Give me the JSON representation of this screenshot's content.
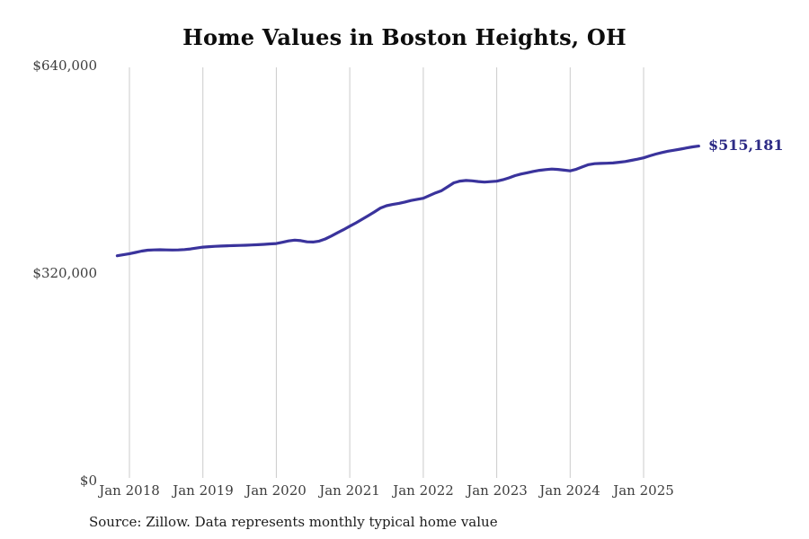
{
  "chart_data": {
    "type": "line",
    "title": "Home Values in Boston Heights, OH",
    "source_note": "Source: Zillow. Data represents monthly typical home value",
    "end_label": "$515,181",
    "end_value": 515181,
    "series_name": "Monthly typical home value",
    "x_start_month": "Nov 2017",
    "x_end_month": "Oct 2025",
    "x_tick_labels": [
      "Jan 2018",
      "Jan 2019",
      "Jan 2020",
      "Jan 2021",
      "Jan 2022",
      "Jan 2023",
      "Jan 2024",
      "Jan 2025"
    ],
    "x_tick_month_indices": [
      2,
      14,
      26,
      38,
      50,
      62,
      74,
      86
    ],
    "y_ticks": [
      {
        "label": "$0",
        "value": 0
      },
      {
        "label": "$320,000",
        "value": 320000
      },
      {
        "label": "$640,000",
        "value": 640000
      }
    ],
    "ylim": [
      0,
      640000
    ],
    "grid": "vertical-only",
    "legend": "none",
    "colors": {
      "line": "#3a339c",
      "end_label": "#2d2b85",
      "grid": "#cbcbcb",
      "axis_text": "#3d3d3d",
      "title": "#0d0d0d",
      "background": "#ffffff"
    },
    "values_monthly": [
      346000,
      347600,
      349200,
      351200,
      353200,
      354600,
      355100,
      355300,
      355100,
      354900,
      355100,
      355600,
      356600,
      358000,
      359300,
      360100,
      360600,
      361000,
      361400,
      361700,
      362000,
      362300,
      362600,
      363100,
      363700,
      364300,
      364900,
      366800,
      368900,
      370100,
      369300,
      367500,
      367300,
      368600,
      372000,
      376500,
      381500,
      386300,
      391600,
      396800,
      402300,
      407800,
      413500,
      419600,
      423200,
      425100,
      426800,
      428900,
      431200,
      433100,
      434700,
      438800,
      443000,
      446500,
      452500,
      458500,
      461200,
      462100,
      461600,
      460400,
      459700,
      460300,
      461000,
      463200,
      466200,
      469600,
      472100,
      474100,
      476100,
      477800,
      478900,
      479700,
      479100,
      478000,
      477000,
      479500,
      483000,
      486500,
      488000,
      488500,
      488700,
      489200,
      490200,
      491400,
      493100,
      495000,
      497000,
      500100,
      502900,
      505200,
      507300,
      508800,
      510500,
      512300,
      513900,
      515181
    ]
  }
}
